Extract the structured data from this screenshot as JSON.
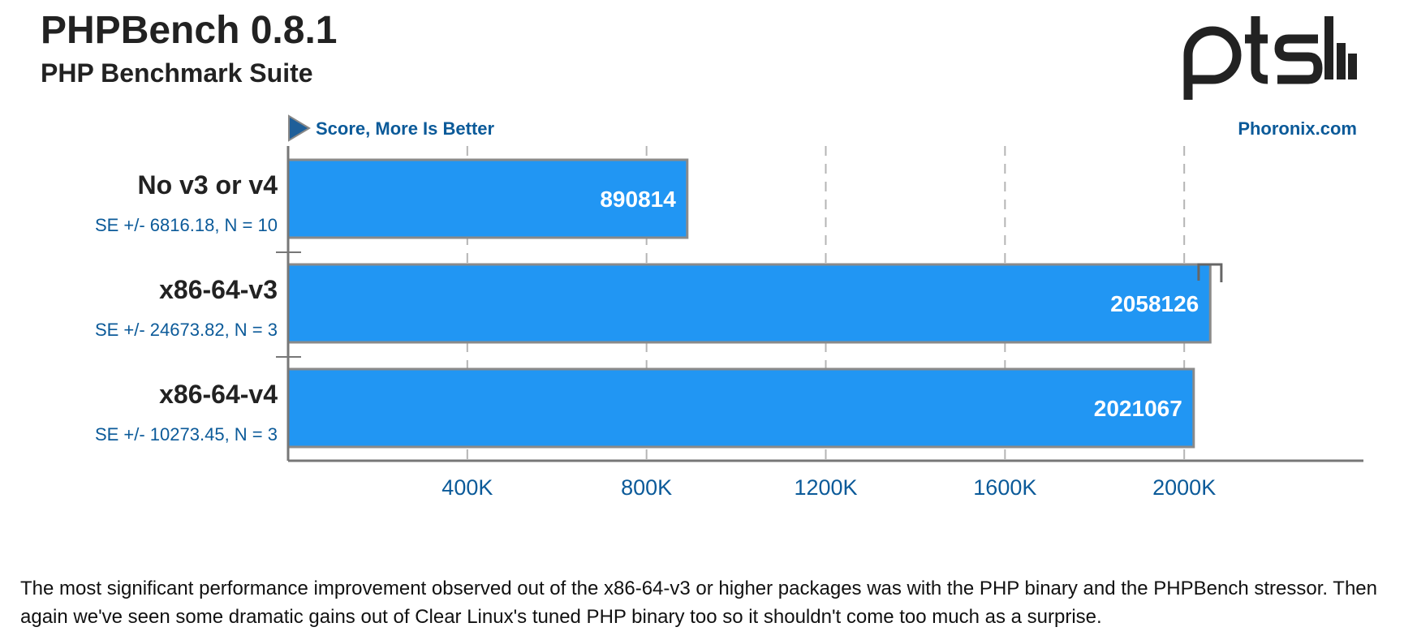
{
  "header": {
    "title": "PHPBench 0.8.1",
    "subtitle": "PHP Benchmark Suite",
    "logo_text": "ptsh"
  },
  "chart_data": {
    "type": "bar",
    "orientation": "horizontal",
    "metric_note": "Score, More Is Better",
    "source": "Phoronix.com",
    "categories": [
      "No v3 or v4",
      "x86-64-v3",
      "x86-64-v4"
    ],
    "values": [
      890814,
      2058126,
      2021067
    ],
    "value_labels": [
      "890814",
      "2058126",
      "2021067"
    ],
    "error_labels": [
      "SE +/- 6816.18, N = 10",
      "SE +/- 24673.82, N = 3",
      "SE +/- 10273.45, N = 3"
    ],
    "errors": [
      6816.18,
      24673.82,
      10273.45
    ],
    "xlim": [
      0,
      2400000
    ],
    "x_ticks": [
      400000,
      800000,
      1200000,
      1600000,
      2000000
    ],
    "x_tick_labels": [
      "400K",
      "800K",
      "1200K",
      "1600K",
      "2000K"
    ],
    "bar_color": "#2196f3",
    "grid": true
  },
  "caption": "The most significant performance improvement observed out of the x86-64-v3 or higher packages was with the PHP binary and the PHPBench stressor. Then again we've seen some dramatic gains out of Clear Linux's tuned PHP binary too so it shouldn't come too much as a surprise."
}
